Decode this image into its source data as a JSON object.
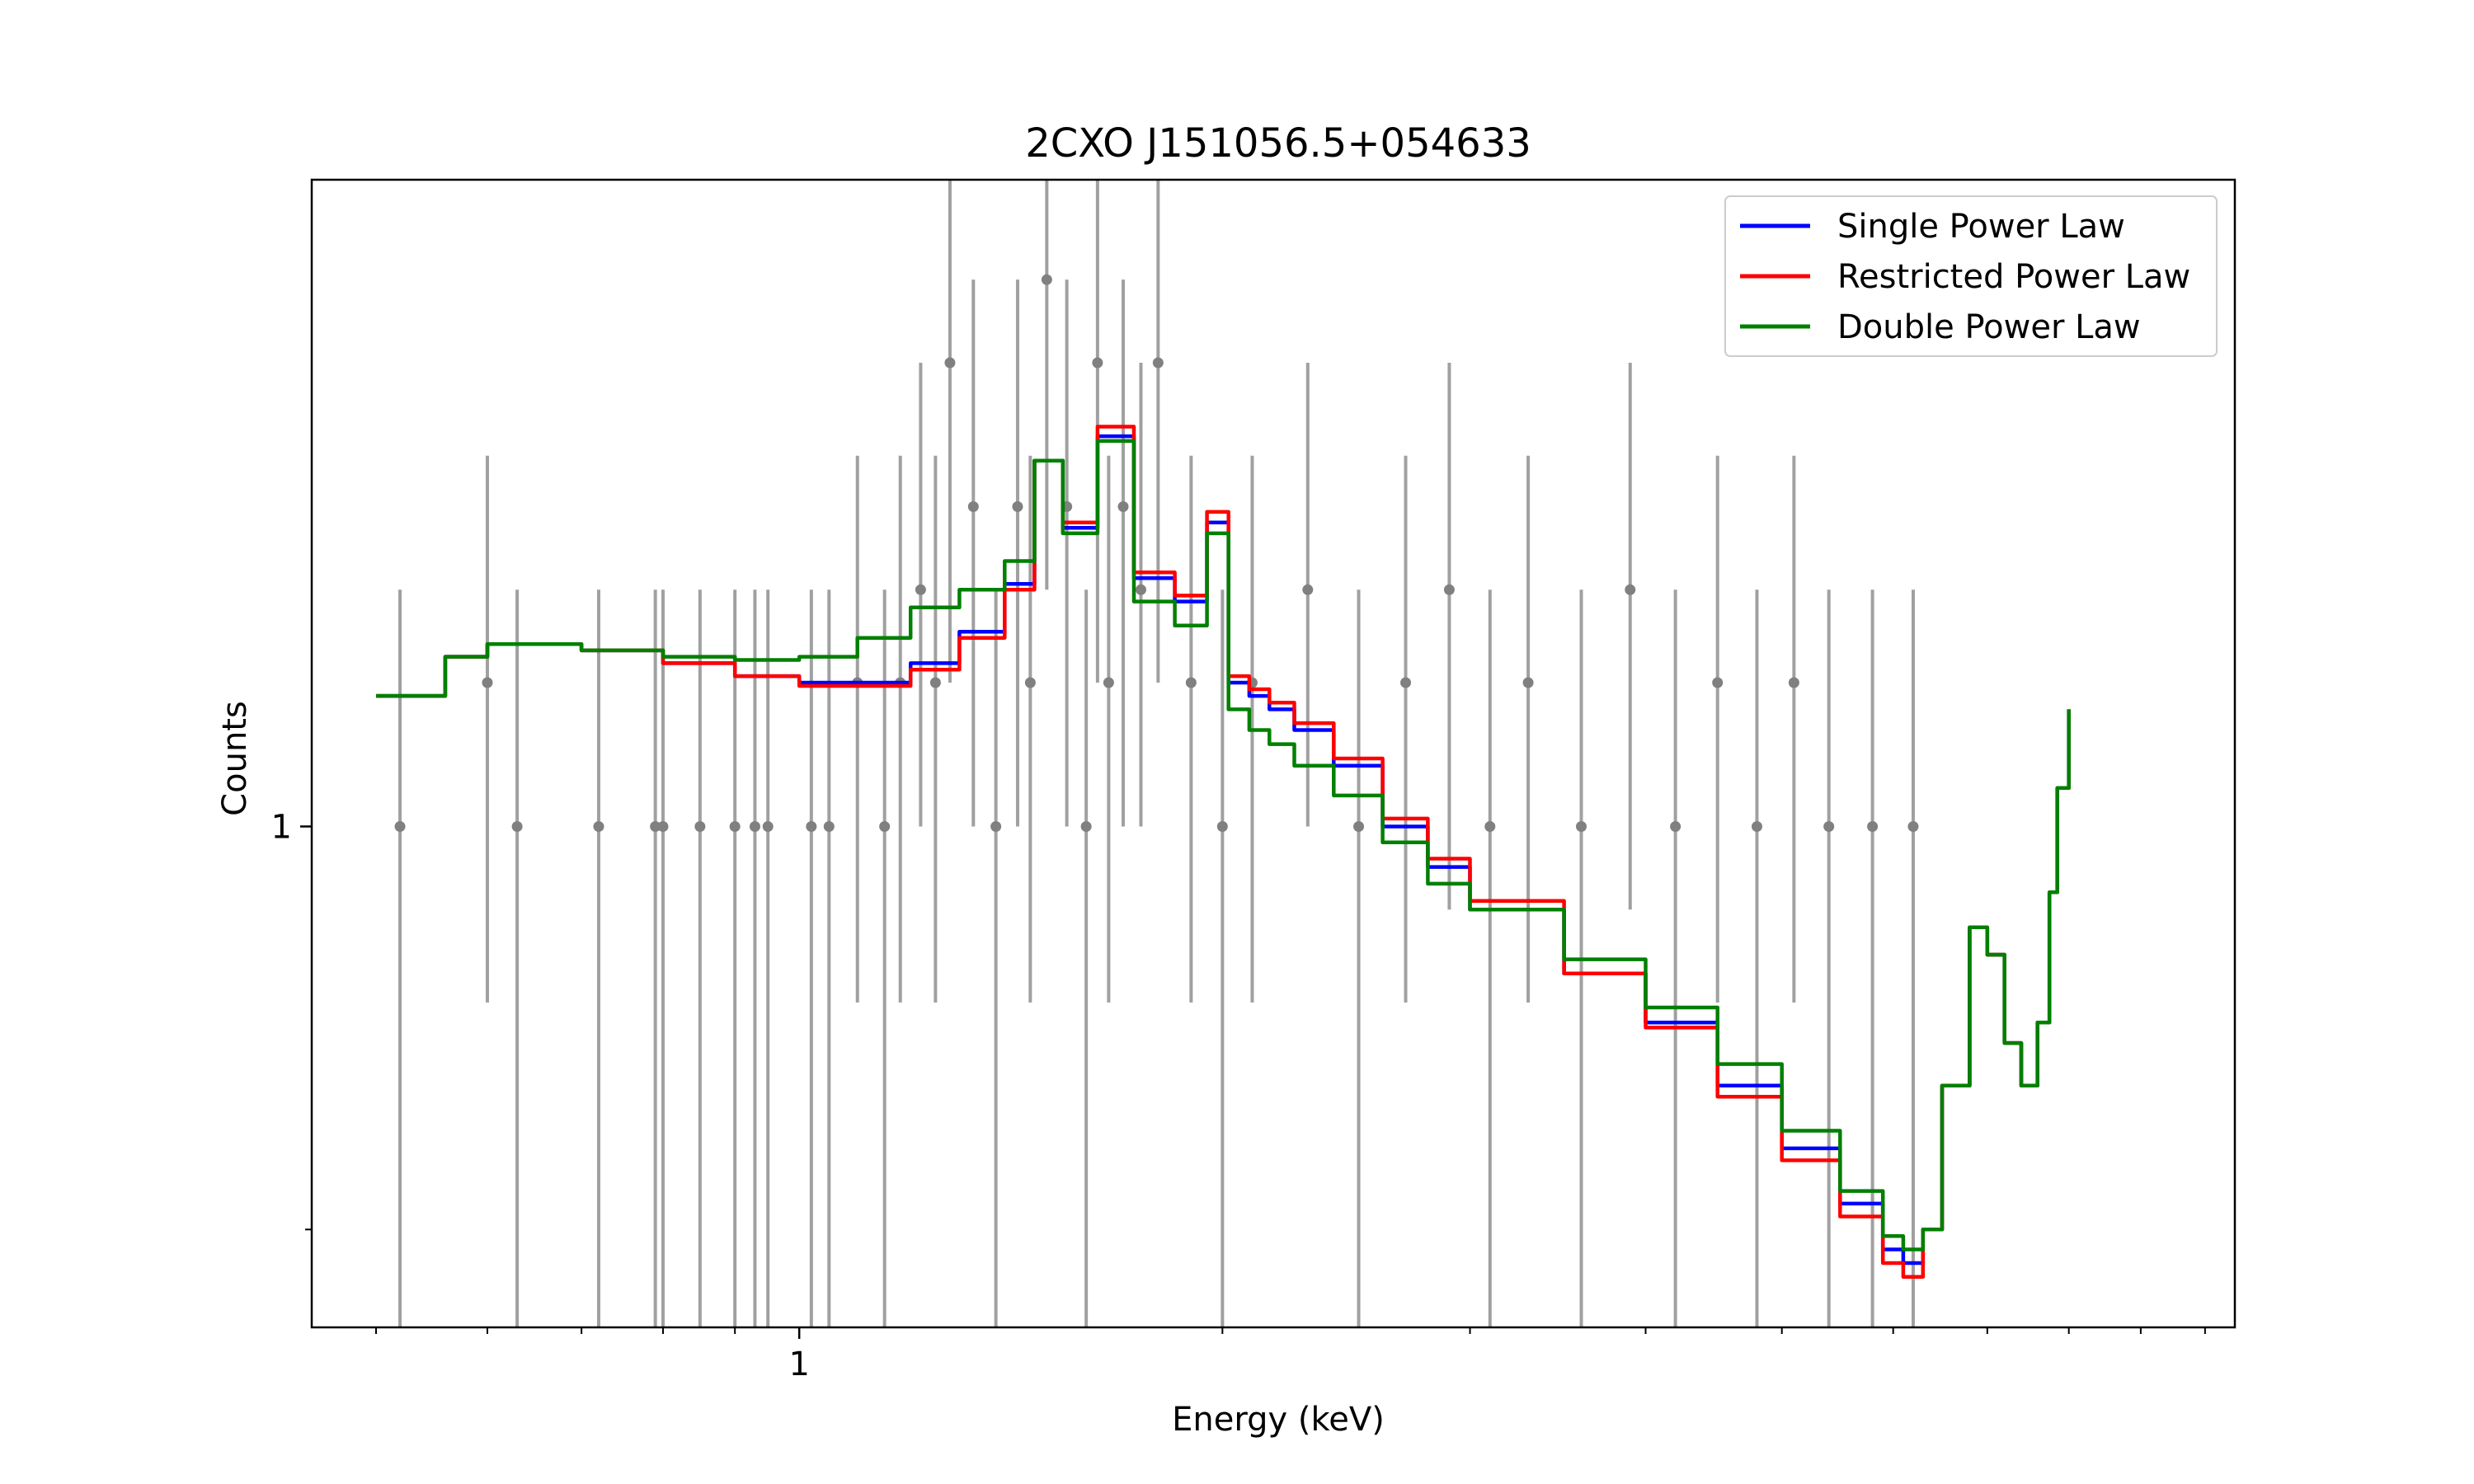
{
  "chart_data": {
    "type": "line",
    "title": "2CXO J151056.5+054633",
    "xlabel": "Energy (keV)",
    "ylabel": "Counts",
    "xscale": "log",
    "yscale": "log",
    "xlim": [
      0.45,
      10.5
    ],
    "ylim": [
      0.53,
      2.27
    ],
    "x_major_ticks": [
      1
    ],
    "x_major_tick_labels": [
      "1"
    ],
    "x_minor_ticks": [
      0.5,
      0.6,
      0.7,
      0.8,
      0.9,
      2,
      3,
      4,
      5,
      6,
      7,
      8,
      9,
      10
    ],
    "y_major_ticks": [
      1
    ],
    "y_major_tick_labels": [
      "1"
    ],
    "y_minor_ticks": [
      0.6
    ],
    "legend": {
      "position": "top-right"
    },
    "series": [
      {
        "name": "Single Power Law",
        "color": "#0000ff",
        "x": [
          0.5,
          0.53,
          0.56,
          0.6,
          0.7,
          0.8,
          0.9,
          1.0,
          1.1,
          1.2,
          1.3,
          1.4,
          1.47,
          1.54,
          1.63,
          1.73,
          1.85,
          1.95,
          2.02,
          2.09,
          2.16,
          2.25,
          2.4,
          2.6,
          2.8,
          3.0,
          3.5,
          4.0,
          4.5,
          5.0,
          5.5,
          5.9,
          6.1,
          6.3,
          6.5,
          6.8,
          7.0,
          7.2,
          7.4,
          7.6,
          7.75,
          7.85,
          8.0
        ],
        "y": [
          1.18,
          1.18,
          1.24,
          1.26,
          1.25,
          1.23,
          1.21,
          1.2,
          1.2,
          1.23,
          1.28,
          1.36,
          1.59,
          1.46,
          1.64,
          1.37,
          1.33,
          1.47,
          1.2,
          1.18,
          1.16,
          1.13,
          1.08,
          1.0,
          0.95,
          0.9,
          0.83,
          0.78,
          0.72,
          0.665,
          0.62,
          0.585,
          0.575,
          0.6,
          0.72,
          0.88,
          0.85,
          0.76,
          0.72,
          0.78,
          0.92,
          1.05,
          1.16
        ]
      },
      {
        "name": "Restricted Power Law",
        "color": "#ff0000",
        "x": [
          0.5,
          0.53,
          0.56,
          0.6,
          0.7,
          0.8,
          0.9,
          1.0,
          1.1,
          1.2,
          1.3,
          1.4,
          1.47,
          1.54,
          1.63,
          1.73,
          1.85,
          1.95,
          2.02,
          2.09,
          2.16,
          2.25,
          2.4,
          2.6,
          2.8,
          3.0,
          3.5,
          4.0,
          4.5,
          5.0,
          5.5,
          5.9,
          6.1,
          6.3,
          6.5,
          6.8,
          7.0,
          7.2,
          7.4,
          7.6,
          7.75,
          7.85,
          8.0
        ],
        "y": [
          1.18,
          1.18,
          1.24,
          1.26,
          1.25,
          1.23,
          1.21,
          1.195,
          1.195,
          1.22,
          1.27,
          1.35,
          1.59,
          1.47,
          1.66,
          1.38,
          1.34,
          1.49,
          1.21,
          1.19,
          1.17,
          1.14,
          1.09,
          1.01,
          0.96,
          0.91,
          0.83,
          0.775,
          0.71,
          0.655,
          0.61,
          0.575,
          0.565,
          0.6,
          0.72,
          0.88,
          0.85,
          0.76,
          0.72,
          0.78,
          0.92,
          1.05,
          1.16
        ]
      },
      {
        "name": "Double Power Law",
        "color": "#008000",
        "x": [
          0.5,
          0.53,
          0.56,
          0.6,
          0.7,
          0.8,
          0.9,
          1.0,
          1.1,
          1.2,
          1.3,
          1.4,
          1.47,
          1.54,
          1.63,
          1.73,
          1.85,
          1.95,
          2.02,
          2.09,
          2.16,
          2.25,
          2.4,
          2.6,
          2.8,
          3.0,
          3.5,
          4.0,
          4.5,
          5.0,
          5.5,
          5.9,
          6.1,
          6.3,
          6.5,
          6.8,
          7.0,
          7.2,
          7.4,
          7.6,
          7.75,
          7.85,
          8.0
        ],
        "y": [
          1.18,
          1.18,
          1.24,
          1.26,
          1.25,
          1.24,
          1.235,
          1.24,
          1.27,
          1.32,
          1.35,
          1.4,
          1.59,
          1.45,
          1.63,
          1.33,
          1.29,
          1.45,
          1.16,
          1.13,
          1.11,
          1.08,
          1.04,
          0.98,
          0.93,
          0.9,
          0.845,
          0.795,
          0.74,
          0.68,
          0.63,
          0.595,
          0.585,
          0.6,
          0.72,
          0.88,
          0.85,
          0.76,
          0.72,
          0.78,
          0.92,
          1.05,
          1.16
        ]
      }
    ],
    "data_points": {
      "color": "#808080",
      "x": [
        0.52,
        0.6,
        0.63,
        0.72,
        0.79,
        0.8,
        0.85,
        0.9,
        0.93,
        0.95,
        1.02,
        1.05,
        1.1,
        1.15,
        1.18,
        1.22,
        1.25,
        1.28,
        1.33,
        1.38,
        1.43,
        1.46,
        1.5,
        1.55,
        1.6,
        1.63,
        1.66,
        1.7,
        1.75,
        1.8,
        1.9,
        2.0,
        2.1,
        2.3,
        2.5,
        2.7,
        2.9,
        3.1,
        3.3,
        3.6,
        3.9,
        4.2,
        4.5,
        4.8,
        5.1,
        5.4,
        5.8,
        6.2
      ],
      "y": [
        1.0,
        1.2,
        1.0,
        1.0,
        1.0,
        1.0,
        1.0,
        1.0,
        1.0,
        1.0,
        1.0,
        1.0,
        1.2,
        1.0,
        1.2,
        1.35,
        1.2,
        1.8,
        1.5,
        1.0,
        1.5,
        1.2,
        2.0,
        1.5,
        1.0,
        1.8,
        1.2,
        1.5,
        1.35,
        1.8,
        1.2,
        1.0,
        1.2,
        1.35,
        1.0,
        1.2,
        1.35,
        1.0,
        1.2,
        1.0,
        1.35,
        1.0,
        1.2,
        1.0,
        1.2,
        1.0,
        1.0,
        1.0
      ],
      "y_low": [
        0.53,
        0.8,
        0.53,
        0.53,
        0.53,
        0.53,
        0.53,
        0.53,
        0.53,
        0.53,
        0.53,
        0.53,
        0.8,
        0.53,
        0.8,
        1.0,
        0.8,
        1.2,
        1.0,
        0.53,
        1.0,
        0.8,
        1.35,
        1.0,
        0.53,
        1.2,
        0.8,
        1.0,
        1.0,
        1.2,
        0.8,
        0.53,
        0.8,
        1.0,
        0.53,
        0.8,
        0.9,
        0.53,
        0.8,
        0.53,
        0.9,
        0.53,
        0.8,
        0.53,
        0.8,
        0.53,
        0.53,
        0.53
      ],
      "y_high": [
        1.35,
        1.6,
        1.35,
        1.35,
        1.35,
        1.35,
        1.35,
        1.35,
        1.35,
        1.35,
        1.35,
        1.35,
        1.6,
        1.35,
        1.6,
        1.8,
        1.6,
        2.27,
        2.0,
        1.35,
        2.0,
        1.6,
        2.27,
        2.0,
        1.35,
        2.27,
        1.6,
        2.0,
        1.8,
        2.27,
        1.6,
        1.35,
        1.6,
        1.8,
        1.35,
        1.6,
        1.8,
        1.35,
        1.6,
        1.35,
        1.8,
        1.35,
        1.6,
        1.35,
        1.6,
        1.35,
        1.35,
        1.35
      ]
    }
  }
}
